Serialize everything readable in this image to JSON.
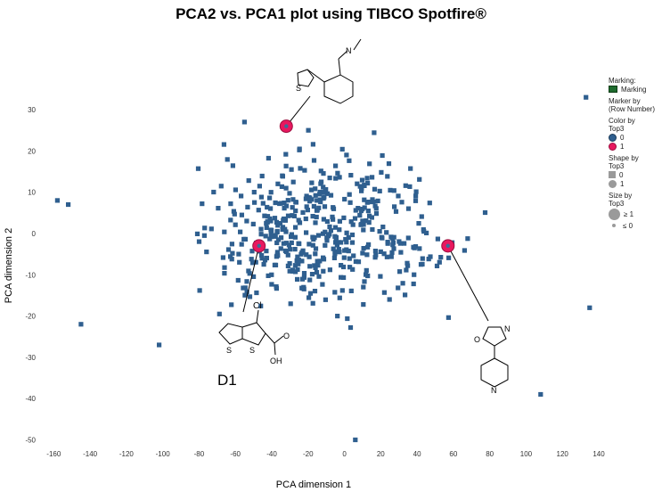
{
  "chart_data": {
    "type": "scatter",
    "title": "PCA2 vs. PCA1 plot using TIBCO Spotfire®",
    "xlabel": "PCA dimension 1",
    "ylabel": "PCA dimension 2",
    "xlim": [
      -168,
      140
    ],
    "ylim": [
      -54,
      38
    ],
    "x_ticks": [
      -160,
      -140,
      -120,
      -100,
      -80,
      -60,
      -40,
      -20,
      0,
      20,
      40,
      60,
      80,
      100,
      120,
      140
    ],
    "y_ticks": [
      30,
      20,
      10,
      0,
      -10,
      -20,
      -30,
      -40,
      -50
    ],
    "grid": false,
    "legend_position": "right",
    "colors": {
      "top3_0": "#2f5f8f",
      "top3_1": "#e8185f",
      "marking": "#1e6b2e"
    },
    "series": [
      {
        "name": "0",
        "marker": "square",
        "cluster_count": 480,
        "cluster_extent": {
          "x": [
            -158,
            135
          ],
          "y": [
            -38,
            34
          ]
        },
        "outliers": [
          {
            "x": 133,
            "y": 33
          },
          {
            "x": 6,
            "y": -50
          },
          {
            "x": 108,
            "y": -39
          },
          {
            "x": 135,
            "y": -18
          },
          {
            "x": -158,
            "y": 8
          },
          {
            "x": -152,
            "y": 7
          },
          {
            "x": -145,
            "y": -22
          },
          {
            "x": -55,
            "y": 27
          },
          {
            "x": -102,
            "y": -27
          }
        ]
      },
      {
        "name": "1",
        "marker": "circle",
        "points": [
          {
            "x": -32,
            "y": 26
          },
          {
            "x": -47,
            "y": -3
          },
          {
            "x": 57,
            "y": -3
          }
        ]
      }
    ],
    "annotations": [
      {
        "label": "D1"
      }
    ]
  },
  "legend": {
    "marking_title": "Marking:",
    "marking_item": "Marking",
    "marker_by_title": "Marker by",
    "marker_by_value": "(Row Number)",
    "color_by_title": "Color by",
    "color_by_value": "Top3",
    "color_items": [
      "0",
      "1"
    ],
    "shape_by_title": "Shape by",
    "shape_by_value": "Top3",
    "shape_items": [
      "0",
      "1"
    ],
    "size_by_title": "Size by",
    "size_by_value": "Top3",
    "size_items": [
      "≥ 1",
      "≤ 0"
    ]
  },
  "structures": {
    "chlorine": "Cl",
    "sulfur": "S",
    "oxygen": "O",
    "hydroxyl": "OH",
    "nitrogen": "N"
  }
}
